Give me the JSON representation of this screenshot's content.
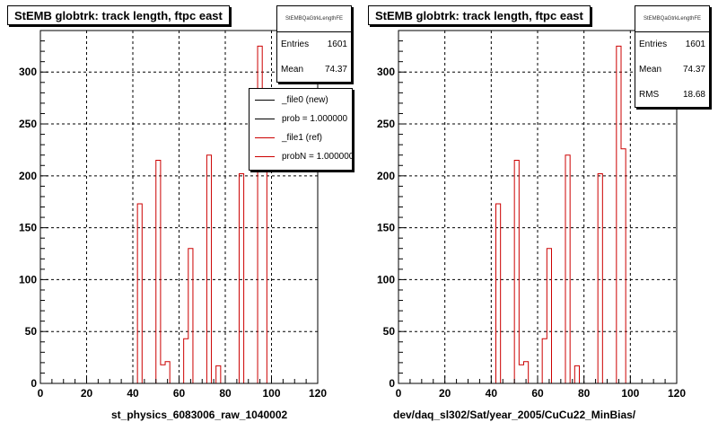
{
  "chart_data": [
    {
      "type": "bar",
      "title": "StEMB globtrk: track length, ftpc east",
      "xlabel": "st_physics_6083006_raw_1040002",
      "ylabel": "",
      "xlim": [
        0,
        120
      ],
      "ylim": [
        0,
        340
      ],
      "xticks": [
        0,
        20,
        40,
        60,
        80,
        100,
        120
      ],
      "yticks": [
        0,
        50,
        100,
        150,
        200,
        250,
        300
      ],
      "grid": true,
      "bin_edges": [
        0,
        2,
        4,
        6,
        8,
        10,
        12,
        14,
        16,
        18,
        20,
        22,
        24,
        26,
        28,
        30,
        32,
        34,
        36,
        38,
        40,
        42,
        44,
        46,
        48,
        50,
        52,
        54,
        56,
        58,
        60,
        62,
        64,
        66,
        68,
        70,
        72,
        74,
        76,
        78,
        80,
        82,
        84,
        86,
        88,
        90,
        92,
        94,
        96,
        98,
        100,
        102,
        104,
        106,
        108,
        110,
        112,
        114,
        116,
        118,
        120
      ],
      "series": [
        {
          "name": "_file1 (ref)",
          "values": [
            0,
            0,
            0,
            0,
            0,
            0,
            0,
            0,
            0,
            0,
            0,
            0,
            0,
            0,
            0,
            0,
            0,
            0,
            0,
            0,
            0,
            173,
            0,
            0,
            0,
            215,
            18,
            21,
            0,
            0,
            0,
            43,
            130,
            0,
            0,
            0,
            220,
            0,
            17,
            0,
            0,
            0,
            0,
            202,
            0,
            0,
            0,
            325,
            226,
            0,
            0,
            0,
            0,
            0,
            0,
            0,
            0,
            0,
            0,
            0
          ]
        }
      ],
      "stats": {
        "name": "StEMBQaGtrkLengthFE",
        "entries": "1601",
        "mean": "74.37"
      },
      "legend": [
        "_file0 (new)",
        "prob = 1.000000",
        "_file1 (ref)",
        "probN = 1.000000"
      ]
    },
    {
      "type": "bar",
      "title": "StEMB globtrk: track length, ftpc east",
      "xlabel": "dev/daq_sl302/Sat/year_2005/CuCu22_MinBias/",
      "ylabel": "",
      "xlim": [
        0,
        120
      ],
      "ylim": [
        0,
        340
      ],
      "xticks": [
        0,
        20,
        40,
        60,
        80,
        100,
        120
      ],
      "yticks": [
        0,
        50,
        100,
        150,
        200,
        250,
        300
      ],
      "grid": true,
      "bin_edges": [
        0,
        2,
        4,
        6,
        8,
        10,
        12,
        14,
        16,
        18,
        20,
        22,
        24,
        26,
        28,
        30,
        32,
        34,
        36,
        38,
        40,
        42,
        44,
        46,
        48,
        50,
        52,
        54,
        56,
        58,
        60,
        62,
        64,
        66,
        68,
        70,
        72,
        74,
        76,
        78,
        80,
        82,
        84,
        86,
        88,
        90,
        92,
        94,
        96,
        98,
        100,
        102,
        104,
        106,
        108,
        110,
        112,
        114,
        116,
        118,
        120
      ],
      "series": [
        {
          "name": "",
          "values": [
            0,
            0,
            0,
            0,
            0,
            0,
            0,
            0,
            0,
            0,
            0,
            0,
            0,
            0,
            0,
            0,
            0,
            0,
            0,
            0,
            0,
            173,
            0,
            0,
            0,
            215,
            18,
            21,
            0,
            0,
            0,
            43,
            130,
            0,
            0,
            0,
            220,
            0,
            17,
            0,
            0,
            0,
            0,
            202,
            0,
            0,
            0,
            325,
            226,
            0,
            0,
            0,
            0,
            0,
            0,
            0,
            0,
            0,
            0,
            0
          ]
        }
      ],
      "stats": {
        "name": "StEMBQaGtrkLengthFE",
        "entries": "1601",
        "mean": "74.37",
        "rms": "18.68"
      }
    }
  ],
  "labels": {
    "entries": "Entries",
    "mean": "Mean",
    "rms": "RMS"
  },
  "colors": {
    "hist": "#cc0000",
    "grid": "#000000",
    "new": "#000000"
  }
}
